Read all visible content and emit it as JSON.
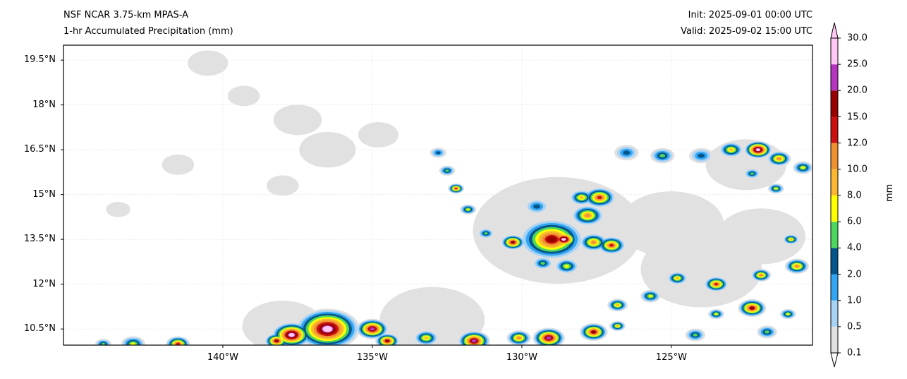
{
  "header": {
    "model": "NSF NCAR 3.75-km MPAS-A",
    "field": "1-hr Accumulated Precipitation (mm)",
    "init": "Init: 2025-09-01 00:00 UTC",
    "valid": "Valid: 2025-09-02 15:00 UTC"
  },
  "chart_data": {
    "type": "heatmap",
    "title": "1-hr Accumulated Precipitation (mm)",
    "extent": {
      "lon": [
        -145.33,
        -120.28
      ],
      "lat": [
        9.96,
        20.0
      ]
    },
    "x_ticks": [
      {
        "value": -140,
        "label": "140°W"
      },
      {
        "value": -135,
        "label": "135°W"
      },
      {
        "value": -130,
        "label": "130°W"
      },
      {
        "value": -125,
        "label": "125°W"
      }
    ],
    "y_ticks": [
      {
        "value": 19.5,
        "label": "19.5°N"
      },
      {
        "value": 18,
        "label": "18°N"
      },
      {
        "value": 16.5,
        "label": "16.5°N"
      },
      {
        "value": 15,
        "label": "15°N"
      },
      {
        "value": 13.5,
        "label": "13.5°N"
      },
      {
        "value": 12,
        "label": "12°N"
      },
      {
        "value": 10.5,
        "label": "10.5°N"
      }
    ],
    "grid": true,
    "colorbar": {
      "label": "mm",
      "levels": [
        "0.1",
        "0.5",
        "1.0",
        "2.0",
        "4.0",
        "6.0",
        "8.0",
        "10.0",
        "12.0",
        "15.0",
        "20.0",
        "25.0",
        "30.0"
      ],
      "colors": [
        "#e1e1e1",
        "#a6d2f6",
        "#33a6f3",
        "#04568a",
        "#4dd75f",
        "#ffff00",
        "#fbb731",
        "#ee922f",
        "#cc1010",
        "#990000",
        "#b535bf",
        "#ffc6f6"
      ],
      "extend": "both"
    },
    "cells": [
      [
        -125,
        14,
        1.3,
        0
      ],
      [
        -124,
        12.5,
        1.5,
        0
      ],
      [
        -122,
        13.6,
        1.1,
        0
      ],
      [
        -133,
        10.8,
        1.3,
        0
      ],
      [
        -138,
        10.6,
        1.0,
        0
      ],
      [
        -128.8,
        13.8,
        2.1,
        0
      ],
      [
        -140.5,
        19.4,
        0.5,
        0
      ],
      [
        -137.5,
        17.5,
        0.6,
        0
      ],
      [
        -139.3,
        18.3,
        0.4,
        0
      ],
      [
        -136.5,
        16.5,
        0.7,
        0
      ],
      [
        -141.5,
        16.0,
        0.4,
        0
      ],
      [
        -134.8,
        17.0,
        0.5,
        0
      ],
      [
        -138,
        15.3,
        0.4,
        0
      ],
      [
        -143.5,
        14.5,
        0.3,
        0
      ],
      [
        -122.5,
        16.0,
        1.0,
        0
      ],
      [
        -129.0,
        13.5,
        0.8,
        9
      ],
      [
        -128.6,
        13.5,
        0.35,
        11
      ],
      [
        -127.6,
        13.4,
        0.35,
        7
      ],
      [
        -127.0,
        13.3,
        0.35,
        8
      ],
      [
        -127.8,
        14.3,
        0.4,
        7
      ],
      [
        -127.4,
        14.9,
        0.4,
        8
      ],
      [
        -128.0,
        14.9,
        0.3,
        6
      ],
      [
        -129.5,
        14.6,
        0.3,
        3
      ],
      [
        -130.3,
        13.4,
        0.3,
        9
      ],
      [
        -128.5,
        12.6,
        0.3,
        5
      ],
      [
        -129.3,
        12.7,
        0.25,
        4
      ],
      [
        -131.2,
        13.7,
        0.2,
        4
      ],
      [
        -131.8,
        14.5,
        0.2,
        5
      ],
      [
        -132.2,
        15.2,
        0.2,
        8
      ],
      [
        -132.5,
        15.8,
        0.2,
        4
      ],
      [
        -132.8,
        16.4,
        0.2,
        3
      ],
      [
        -126.5,
        16.4,
        0.3,
        3
      ],
      [
        -125.3,
        16.3,
        0.3,
        4
      ],
      [
        -124.0,
        16.3,
        0.3,
        3
      ],
      [
        -123.0,
        16.5,
        0.3,
        6
      ],
      [
        -122.1,
        16.5,
        0.35,
        11
      ],
      [
        -121.4,
        16.2,
        0.3,
        7
      ],
      [
        -120.6,
        15.9,
        0.25,
        5
      ],
      [
        -122.3,
        15.7,
        0.2,
        4
      ],
      [
        -121.5,
        15.2,
        0.2,
        5
      ],
      [
        -121.0,
        13.5,
        0.2,
        6
      ],
      [
        -120.8,
        12.6,
        0.3,
        7
      ],
      [
        -122.0,
        12.3,
        0.25,
        7
      ],
      [
        -123.5,
        12.0,
        0.3,
        8
      ],
      [
        -124.8,
        12.2,
        0.25,
        6
      ],
      [
        -125.7,
        11.6,
        0.25,
        5
      ],
      [
        -126.8,
        11.3,
        0.25,
        6
      ],
      [
        -122.3,
        11.2,
        0.35,
        9
      ],
      [
        -121.1,
        11.0,
        0.2,
        5
      ],
      [
        -123.5,
        11.0,
        0.2,
        5
      ],
      [
        -121.8,
        10.4,
        0.25,
        4
      ],
      [
        -124.2,
        10.3,
        0.25,
        4
      ],
      [
        -136.5,
        10.5,
        0.8,
        11
      ],
      [
        -137.7,
        10.3,
        0.5,
        11
      ],
      [
        -135.0,
        10.5,
        0.4,
        10
      ],
      [
        -134.5,
        10.1,
        0.3,
        9
      ],
      [
        -133.2,
        10.2,
        0.3,
        6
      ],
      [
        -131.6,
        10.1,
        0.4,
        10
      ],
      [
        -130.1,
        10.2,
        0.3,
        7
      ],
      [
        -129.1,
        10.2,
        0.4,
        10
      ],
      [
        -127.6,
        10.4,
        0.35,
        9
      ],
      [
        -126.8,
        10.6,
        0.2,
        6
      ],
      [
        -143.0,
        10.0,
        0.3,
        5
      ],
      [
        -141.5,
        10.0,
        0.3,
        8
      ],
      [
        -144.0,
        10.0,
        0.2,
        4
      ],
      [
        -138.2,
        10.1,
        0.3,
        9
      ]
    ]
  }
}
